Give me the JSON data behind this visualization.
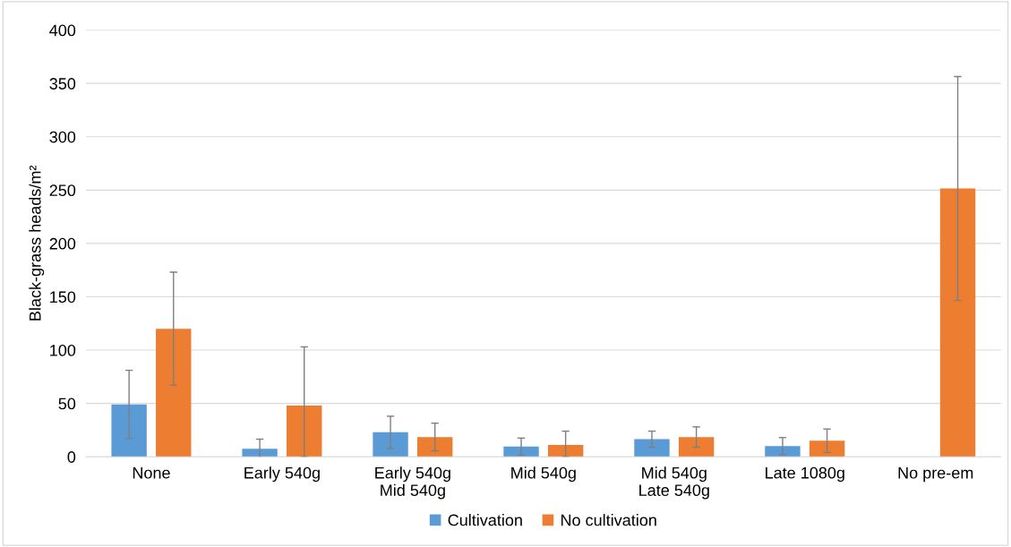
{
  "chart_data": {
    "type": "bar",
    "ylabel": "Black-grass heads/m²",
    "categories": [
      "None",
      "Early 540g",
      "Early 540g\nMid 540g",
      "Mid 540g",
      "Mid 540g\nLate 540g",
      "Late 1080g",
      "No pre-em"
    ],
    "series": [
      {
        "name": "Cultivation",
        "color": "#5b9bd5",
        "values": [
          49,
          7.5,
          23,
          9.5,
          16.5,
          10,
          null
        ],
        "errors": [
          32,
          9,
          15,
          8,
          7.5,
          8,
          null
        ]
      },
      {
        "name": "No cultivation",
        "color": "#ed7d31",
        "values": [
          120,
          48,
          18.5,
          11,
          18.5,
          15,
          251.5
        ],
        "errors": [
          53,
          [
            0,
            103
          ],
          13,
          [
            0,
            24
          ],
          9.5,
          11,
          105
        ]
      }
    ],
    "ylim": [
      0,
      400
    ],
    "yticks": [
      0,
      50,
      100,
      150,
      200,
      250,
      300,
      350,
      400
    ],
    "grid": "y",
    "legend": "bottom"
  }
}
